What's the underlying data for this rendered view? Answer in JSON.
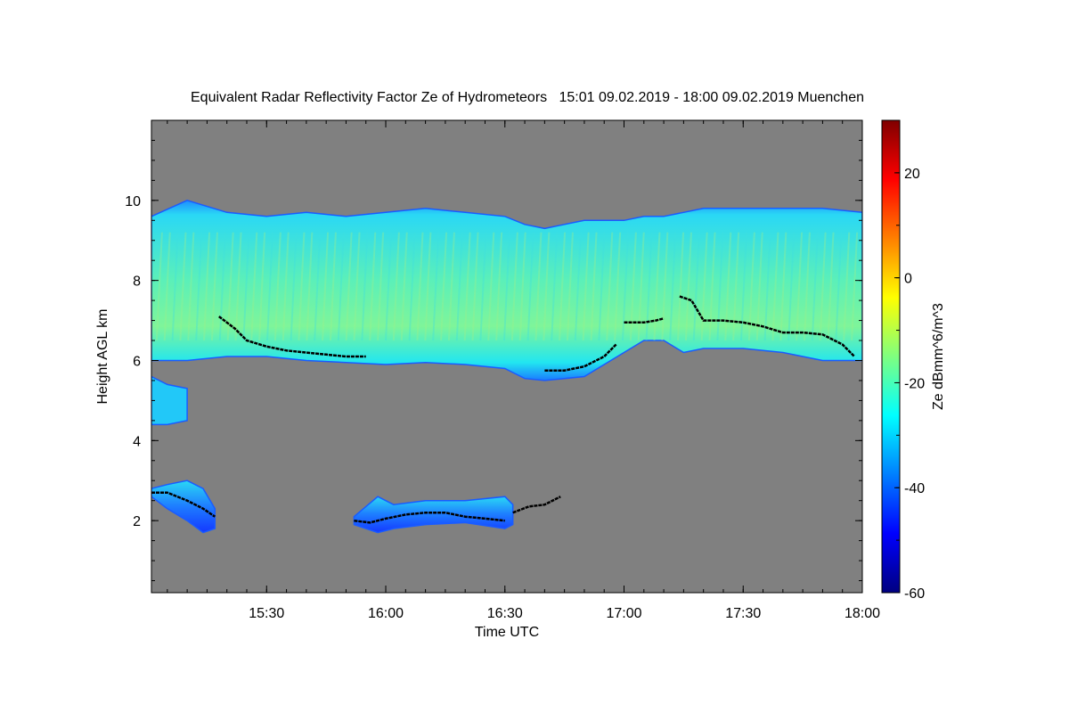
{
  "chart_data": {
    "type": "heatmap",
    "title": "Equivalent Radar Reflectivity Factor Ze of Hydrometeors   15:01 09.02.2019 - 18:00 09.02.2019 Muenchen",
    "xlabel": "Time UTC",
    "ylabel": "Height AGL km",
    "colorbar_label": "Ze dBmm^6/m^3",
    "xlim": [
      "15:01",
      "18:00"
    ],
    "ylim": [
      0.2,
      12
    ],
    "x_ticks": [
      "15:30",
      "16:00",
      "16:30",
      "17:00",
      "17:30",
      "18:00"
    ],
    "y_ticks": [
      2,
      4,
      6,
      8,
      10
    ],
    "colorbar_range": [
      -60,
      30
    ],
    "colorbar_ticks": [
      -60,
      -40,
      -20,
      0,
      20
    ],
    "colormap": [
      "#00007f",
      "#0000ff",
      "#007fff",
      "#00ffff",
      "#7fff7f",
      "#ffff00",
      "#ff7f00",
      "#ff0000",
      "#7f0000"
    ],
    "background_color": "#808080",
    "cloud_layers": [
      {
        "name": "upper cloud layer",
        "typical_ze_dbz": -22,
        "time": [
          "15:01",
          "15:10",
          "15:20",
          "15:30",
          "15:40",
          "15:50",
          "16:00",
          "16:10",
          "16:20",
          "16:30",
          "16:35",
          "16:40",
          "16:45",
          "16:50",
          "17:00",
          "17:05",
          "17:10",
          "17:15",
          "17:20",
          "17:30",
          "17:40",
          "17:50",
          "18:00"
        ],
        "base_km": [
          6.0,
          6.0,
          6.1,
          6.1,
          6.0,
          5.95,
          5.9,
          5.95,
          5.9,
          5.8,
          5.55,
          5.5,
          5.55,
          5.6,
          6.2,
          6.5,
          6.5,
          6.2,
          6.3,
          6.3,
          6.2,
          6.0,
          6.0
        ],
        "top_km": [
          9.6,
          10.0,
          9.7,
          9.6,
          9.7,
          9.6,
          9.7,
          9.8,
          9.7,
          9.6,
          9.4,
          9.3,
          9.4,
          9.5,
          9.5,
          9.6,
          9.6,
          9.7,
          9.8,
          9.8,
          9.8,
          9.8,
          9.7
        ]
      },
      {
        "name": "mid cloud fragment",
        "typical_ze_dbz": -28,
        "time": [
          "15:01",
          "15:05",
          "15:10",
          "15:10"
        ],
        "base_km": [
          4.4,
          4.4,
          4.5,
          5.0
        ],
        "top_km": [
          5.6,
          5.4,
          5.3,
          5.2
        ]
      },
      {
        "name": "low cloud 1",
        "typical_ze_dbz": -35,
        "time": [
          "15:01",
          "15:05",
          "15:10",
          "15:14",
          "15:17"
        ],
        "base_km": [
          2.6,
          2.3,
          2.0,
          1.7,
          1.8
        ],
        "top_km": [
          2.8,
          2.9,
          3.0,
          2.8,
          2.3
        ]
      },
      {
        "name": "low cloud 2",
        "typical_ze_dbz": -38,
        "time": [
          "15:52",
          "15:58",
          "16:02",
          "16:10",
          "16:20",
          "16:30",
          "16:32"
        ],
        "base_km": [
          1.9,
          1.7,
          1.8,
          1.9,
          1.95,
          1.8,
          1.9
        ],
        "top_km": [
          2.1,
          2.6,
          2.4,
          2.5,
          2.5,
          2.6,
          2.4
        ]
      }
    ],
    "black_line_segments": [
      {
        "time": [
          "15:18",
          "15:22",
          "15:25",
          "15:30",
          "15:35",
          "15:45",
          "15:50",
          "15:55"
        ],
        "height_km": [
          7.1,
          6.8,
          6.5,
          6.35,
          6.25,
          6.15,
          6.1,
          6.1
        ]
      },
      {
        "time": [
          "16:40",
          "16:45",
          "16:50",
          "16:55",
          "16:58"
        ],
        "height_km": [
          5.75,
          5.75,
          5.85,
          6.1,
          6.4
        ]
      },
      {
        "time": [
          "17:00",
          "17:05",
          "17:08",
          "17:10"
        ],
        "height_km": [
          6.95,
          6.95,
          7.0,
          7.05
        ]
      },
      {
        "time": [
          "17:14",
          "17:17",
          "17:20",
          "17:25",
          "17:30",
          "17:35",
          "17:40",
          "17:45",
          "17:50",
          "17:55",
          "17:58"
        ],
        "height_km": [
          7.6,
          7.5,
          7.0,
          7.0,
          6.95,
          6.85,
          6.7,
          6.7,
          6.65,
          6.4,
          6.1
        ]
      },
      {
        "time": [
          "15:01",
          "15:05",
          "15:10",
          "15:14",
          "15:17"
        ],
        "height_km": [
          2.7,
          2.7,
          2.5,
          2.3,
          2.1
        ]
      },
      {
        "time": [
          "15:52",
          "15:56",
          "16:00",
          "16:05",
          "16:10",
          "16:15",
          "16:20",
          "16:25",
          "16:30"
        ],
        "height_km": [
          2.0,
          1.95,
          2.05,
          2.15,
          2.2,
          2.2,
          2.1,
          2.05,
          2.0
        ]
      },
      {
        "time": [
          "16:32",
          "16:36",
          "16:40",
          "16:44"
        ],
        "height_km": [
          2.2,
          2.35,
          2.4,
          2.6
        ]
      }
    ]
  }
}
